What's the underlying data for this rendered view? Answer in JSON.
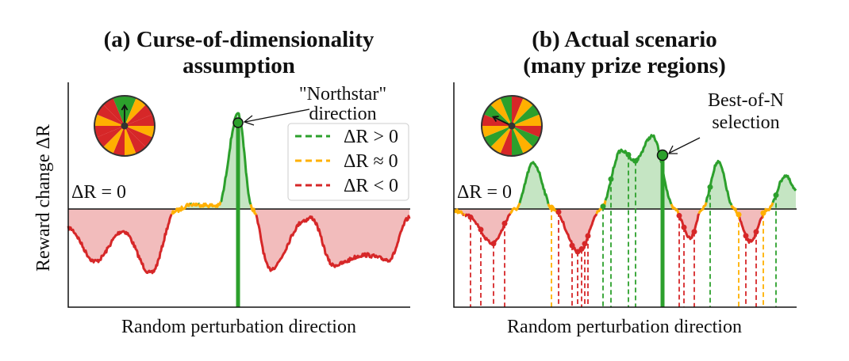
{
  "panel_a": {
    "title_line1": "(a) Curse-of-dimensionality",
    "title_line2": "assumption",
    "ylabel": "Reward change ΔR",
    "xlabel": "Random perturbation direction",
    "zero_label": "ΔR = 0",
    "annotation_line1": "\"Northstar\"",
    "annotation_line2": "direction",
    "legend": [
      {
        "label": "ΔR > 0",
        "color": "#2ca02c"
      },
      {
        "label": "ΔR ≈ 0",
        "color": "#ffb000"
      },
      {
        "label": "ΔR < 0",
        "color": "#d62728"
      }
    ]
  },
  "panel_b": {
    "title_line1": "(b) Actual scenario",
    "title_line2": "(many prize regions)",
    "xlabel": "Random perturbation direction",
    "zero_label": "ΔR = 0",
    "annotation_line1": "Best-of-N",
    "annotation_line2": "selection"
  },
  "colors": {
    "positive": "#2ca02c",
    "neutral": "#ffb000",
    "negative": "#d62728",
    "positive_fill": "#c5e5c3",
    "negative_fill": "#f2bcbc"
  }
}
